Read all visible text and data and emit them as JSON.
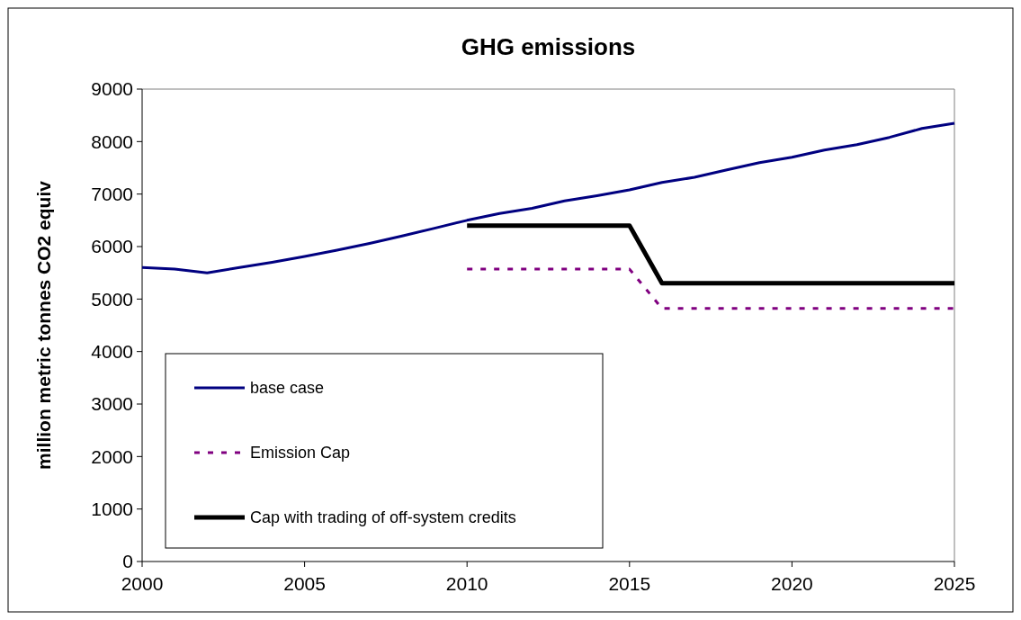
{
  "chart_data": {
    "type": "line",
    "title": "GHG emissions",
    "ylabel": "million metric tonnes CO2 equiv",
    "x": [
      2000,
      2001,
      2002,
      2003,
      2004,
      2005,
      2006,
      2007,
      2008,
      2009,
      2010,
      2011,
      2012,
      2013,
      2014,
      2015,
      2016,
      2017,
      2018,
      2019,
      2020,
      2021,
      2022,
      2023,
      2024,
      2025
    ],
    "xlim": [
      2000,
      2025
    ],
    "xticks": [
      2000,
      2005,
      2010,
      2015,
      2020,
      2025
    ],
    "ylim": [
      0,
      9000
    ],
    "yticks": [
      0,
      1000,
      2000,
      3000,
      4000,
      5000,
      6000,
      7000,
      8000,
      9000
    ],
    "grid": false,
    "legend": "bottom left",
    "series": [
      {
        "name": "base case",
        "color": "#000080",
        "line_style": "solid",
        "values": [
          5600,
          5570,
          5500,
          5600,
          5700,
          5810,
          5930,
          6060,
          6200,
          6350,
          6500,
          6630,
          6730,
          6870,
          6970,
          7080,
          7220,
          7320,
          7460,
          7600,
          7700,
          7840,
          7940,
          8080,
          8250,
          8350
        ]
      },
      {
        "name": "Emission Cap",
        "color": "#800080",
        "line_style": "dotted",
        "values": [
          null,
          null,
          null,
          null,
          null,
          null,
          null,
          null,
          null,
          null,
          5570,
          5570,
          5570,
          5570,
          5570,
          5570,
          4820,
          4820,
          4820,
          4820,
          4820,
          4820,
          4820,
          4820,
          4820,
          4820
        ]
      },
      {
        "name": "Cap with trading of off-system credits",
        "color": "#000000",
        "line_style": "solid",
        "values": [
          null,
          null,
          null,
          null,
          null,
          null,
          null,
          null,
          null,
          null,
          6400,
          6400,
          6400,
          6400,
          6400,
          6400,
          5300,
          5300,
          5300,
          5300,
          5300,
          5300,
          5300,
          5300,
          5300,
          5300
        ]
      }
    ]
  }
}
